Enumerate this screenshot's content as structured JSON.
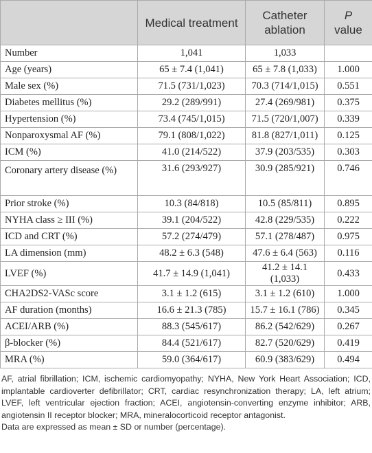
{
  "table": {
    "header": {
      "medical": "Medical treatment",
      "catheter": "Catheter ablation",
      "p": "P",
      "p_suffix": "value"
    },
    "rows": [
      [
        "Number",
        "1,041",
        "1,033",
        null
      ],
      [
        "Age (years)",
        "65 ± 7.4 (1,041)",
        "65 ± 7.8 (1,033)",
        "1.000"
      ],
      [
        "Male sex (%)",
        "71.5 (731/1,023)",
        "70.3 (714/1,015)",
        "0.551"
      ],
      [
        "Diabetes mellitus (%)",
        "29.2 (289/991)",
        "27.4 (269/981)",
        "0.375"
      ],
      [
        "Hypertension (%)",
        "73.4 (745/1,015)",
        "71.5 (720/1,007)",
        "0.339"
      ],
      [
        "Nonparoxysmal AF (%)",
        "79.1 (808/1,022)",
        "81.8 (827/1,011)",
        "0.125"
      ],
      [
        "ICM (%)",
        "41.0 (214/522)",
        "37.9 (203/535)",
        "0.303"
      ],
      [
        "Coronary artery disease (%)",
        "31.6 (293/927)",
        "30.9 (285/921)",
        "0.746"
      ],
      [
        "Prior stroke (%)",
        "10.3 (84/818)",
        "10.5 (85/811)",
        "0.895"
      ],
      [
        "NYHA class ≥ III (%)",
        "39.1 (204/522)",
        "42.8 (229/535)",
        "0.222"
      ],
      [
        "ICD and CRT (%)",
        "57.2 (274/479)",
        "57.1 (278/487)",
        "0.975"
      ],
      [
        "LA dimension (mm)",
        "48.2 ± 6.3 (548)",
        "47.6 ± 6.4 (563)",
        "0.116"
      ],
      [
        "LVEF (%)",
        "41.7 ± 14.9 (1,041)",
        "41.2 ± 14.1 (1,033)",
        "0.433"
      ],
      [
        "CHA2DS2-VASc score",
        "3.1 ± 1.2 (615)",
        "3.1 ± 1.2 (610)",
        "1.000"
      ],
      [
        "AF duration (months)",
        "16.6 ± 21.3 (785)",
        "15.7 ± 16.1 (786)",
        "0.345"
      ],
      [
        "ACEI/ARB (%)",
        "88.3 (545/617)",
        "86.2 (542/629)",
        "0.267"
      ],
      [
        "β-blocker (%)",
        "84.4 (521/617)",
        "82.7 (520/629)",
        "0.419"
      ],
      [
        "MRA (%)",
        "59.0 (364/617)",
        "60.9 (383/629)",
        "0.494"
      ]
    ]
  },
  "footnotes": [
    "AF, atrial fibrillation; ICM, ischemic cardiomyopathy; NYHA, New York Heart Association; ICD, implantable cardioverter defibrillator; CRT, cardiac resynchronization therapy; LA, left atrium; LVEF, left ventricular ejection fraction; ACEI, angiotensin-converting enzyme inhibitor; ARB, angiotensin II receptor blocker; MRA, mineralocorticoid receptor antagonist.",
    "Data are expressed as mean ± SD or number (percentage)."
  ]
}
